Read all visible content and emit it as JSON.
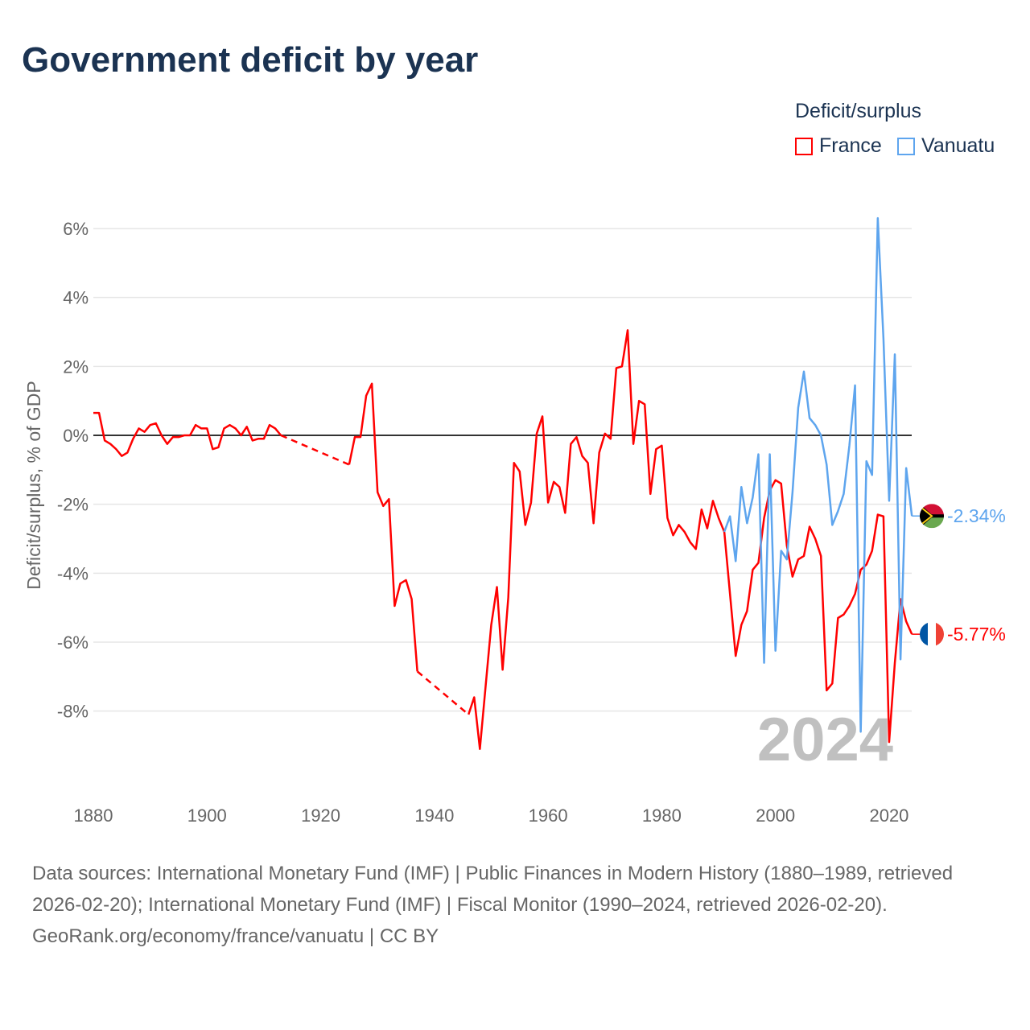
{
  "title": "Government deficit by year",
  "legend": {
    "title": "Deficit/surplus",
    "items": [
      {
        "label": "France",
        "color": "#ff0000"
      },
      {
        "label": "Vanuatu",
        "color": "#5ea5ee"
      }
    ]
  },
  "chart_data": {
    "type": "line",
    "title": "Government deficit by year",
    "xlabel": "",
    "ylabel": "Deficit/surplus, % of GDP",
    "xlim": [
      1880,
      2024
    ],
    "ylim": [
      -10.3,
      6.3
    ],
    "x_ticks": [
      1880,
      1900,
      1920,
      1940,
      1960,
      1980,
      2000,
      2020
    ],
    "y_ticks": [
      6,
      4,
      2,
      0,
      -2,
      -4,
      -6,
      -8
    ],
    "y_tick_labels": [
      "6%",
      "4%",
      "2%",
      "0%",
      "-2%",
      "-4%",
      "-6%",
      "-8%"
    ],
    "year_watermark": "2024",
    "series": [
      {
        "name": "France",
        "color": "#ff0000",
        "end_label": "-5.77%",
        "flag": "france",
        "points": [
          [
            1880,
            0.65
          ],
          [
            1881,
            0.65
          ],
          [
            1882,
            -0.15
          ],
          [
            1883,
            -0.25
          ],
          [
            1884,
            -0.4
          ],
          [
            1885,
            -0.6
          ],
          [
            1886,
            -0.5
          ],
          [
            1887,
            -0.1
          ],
          [
            1888,
            0.2
          ],
          [
            1889,
            0.1
          ],
          [
            1890,
            0.3
          ],
          [
            1891,
            0.35
          ],
          [
            1892,
            0.0
          ],
          [
            1893,
            -0.25
          ],
          [
            1894,
            -0.05
          ],
          [
            1895,
            -0.05
          ],
          [
            1896,
            0.0
          ],
          [
            1897,
            0.0
          ],
          [
            1898,
            0.3
          ],
          [
            1899,
            0.2
          ],
          [
            1900,
            0.2
          ],
          [
            1901,
            -0.4
          ],
          [
            1902,
            -0.35
          ],
          [
            1903,
            0.2
          ],
          [
            1904,
            0.3
          ],
          [
            1905,
            0.2
          ],
          [
            1906,
            0.0
          ],
          [
            1907,
            0.25
          ],
          [
            1908,
            -0.15
          ],
          [
            1909,
            -0.1
          ],
          [
            1910,
            -0.1
          ],
          [
            1911,
            0.3
          ],
          [
            1912,
            0.2
          ],
          [
            1913,
            0.0
          ],
          [
            1925,
            -0.85
          ],
          [
            1926,
            -0.05
          ],
          [
            1927,
            -0.05
          ],
          [
            1928,
            1.15
          ],
          [
            1929,
            1.5
          ],
          [
            1930,
            -1.65
          ],
          [
            1931,
            -2.05
          ],
          [
            1932,
            -1.85
          ],
          [
            1933,
            -4.95
          ],
          [
            1934,
            -4.3
          ],
          [
            1935,
            -4.2
          ],
          [
            1936,
            -4.75
          ],
          [
            1937,
            -6.85
          ],
          [
            1946,
            -8.1
          ],
          [
            1947,
            -7.6
          ],
          [
            1948,
            -9.1
          ],
          [
            1949,
            -7.3
          ],
          [
            1950,
            -5.5
          ],
          [
            1951,
            -4.4
          ],
          [
            1952,
            -6.8
          ],
          [
            1953,
            -4.7
          ],
          [
            1954,
            -0.8
          ],
          [
            1955,
            -1.05
          ],
          [
            1956,
            -2.6
          ],
          [
            1957,
            -1.95
          ],
          [
            1958,
            0.05
          ],
          [
            1959,
            0.55
          ],
          [
            1960,
            -1.95
          ],
          [
            1961,
            -1.35
          ],
          [
            1962,
            -1.5
          ],
          [
            1963,
            -2.25
          ],
          [
            1964,
            -0.25
          ],
          [
            1965,
            -0.05
          ],
          [
            1966,
            -0.6
          ],
          [
            1967,
            -0.8
          ],
          [
            1968,
            -2.55
          ],
          [
            1969,
            -0.5
          ],
          [
            1970,
            0.05
          ],
          [
            1971,
            -0.1
          ],
          [
            1972,
            1.95
          ],
          [
            1973,
            2.0
          ],
          [
            1974,
            3.05
          ],
          [
            1975,
            -0.25
          ],
          [
            1976,
            1.0
          ],
          [
            1977,
            0.9
          ],
          [
            1978,
            -1.7
          ],
          [
            1979,
            -0.4
          ],
          [
            1980,
            -0.3
          ],
          [
            1981,
            -2.4
          ],
          [
            1982,
            -2.9
          ],
          [
            1983,
            -2.6
          ],
          [
            1984,
            -2.8
          ],
          [
            1985,
            -3.1
          ],
          [
            1986,
            -3.3
          ],
          [
            1987,
            -2.15
          ],
          [
            1988,
            -2.7
          ],
          [
            1989,
            -1.9
          ],
          [
            1990,
            -2.4
          ],
          [
            1991,
            -2.8
          ],
          [
            1992,
            -4.6
          ],
          [
            1993,
            -6.4
          ],
          [
            1994,
            -5.5
          ],
          [
            1995,
            -5.1
          ],
          [
            1996,
            -3.9
          ],
          [
            1997,
            -3.7
          ],
          [
            1998,
            -2.4
          ],
          [
            1999,
            -1.6
          ],
          [
            2000,
            -1.3
          ],
          [
            2001,
            -1.4
          ],
          [
            2002,
            -3.2
          ],
          [
            2003,
            -4.1
          ],
          [
            2004,
            -3.6
          ],
          [
            2005,
            -3.5
          ],
          [
            2006,
            -2.65
          ],
          [
            2007,
            -3.0
          ],
          [
            2008,
            -3.5
          ],
          [
            2009,
            -7.4
          ],
          [
            2010,
            -7.2
          ],
          [
            2011,
            -5.3
          ],
          [
            2012,
            -5.2
          ],
          [
            2013,
            -4.95
          ],
          [
            2014,
            -4.6
          ],
          [
            2015,
            -3.9
          ],
          [
            2016,
            -3.75
          ],
          [
            2017,
            -3.35
          ],
          [
            2018,
            -2.3
          ],
          [
            2019,
            -2.35
          ],
          [
            2020,
            -8.9
          ],
          [
            2021,
            -6.6
          ],
          [
            2022,
            -4.75
          ],
          [
            2023,
            -5.4
          ],
          [
            2024,
            -5.77
          ]
        ]
      },
      {
        "name": "Vanuatu",
        "color": "#5ea5ee",
        "end_label": "-2.34%",
        "flag": "vanuatu",
        "points": [
          [
            1991,
            -2.8
          ],
          [
            1992,
            -2.35
          ],
          [
            1993,
            -3.65
          ],
          [
            1994,
            -1.5
          ],
          [
            1995,
            -2.55
          ],
          [
            1996,
            -1.8
          ],
          [
            1997,
            -0.55
          ],
          [
            1998,
            -6.6
          ],
          [
            1999,
            -0.55
          ],
          [
            2000,
            -6.25
          ],
          [
            2001,
            -3.35
          ],
          [
            2002,
            -3.6
          ],
          [
            2003,
            -1.65
          ],
          [
            2004,
            0.8
          ],
          [
            2005,
            1.85
          ],
          [
            2006,
            0.5
          ],
          [
            2007,
            0.3
          ],
          [
            2008,
            0.0
          ],
          [
            2009,
            -0.85
          ],
          [
            2010,
            -2.6
          ],
          [
            2011,
            -2.2
          ],
          [
            2012,
            -1.7
          ],
          [
            2013,
            -0.3
          ],
          [
            2014,
            1.45
          ],
          [
            2015,
            -8.6
          ],
          [
            2016,
            -0.75
          ],
          [
            2017,
            -1.15
          ],
          [
            2018,
            6.3
          ],
          [
            2019,
            2.8
          ],
          [
            2020,
            -1.9
          ],
          [
            2021,
            2.35
          ],
          [
            2022,
            -6.5
          ],
          [
            2023,
            -0.95
          ],
          [
            2024,
            -2.34
          ]
        ]
      }
    ]
  },
  "footer": {
    "sources": "Data sources: International Monetary Fund (IMF) | Public Finances in Modern History (1880–1989, retrieved 2026-02-20); International Monetary Fund (IMF) | Fiscal Monitor (1990–2024, retrieved 2026-02-20).",
    "credit": "GeoRank.org/economy/france/vanuatu | CC BY"
  }
}
